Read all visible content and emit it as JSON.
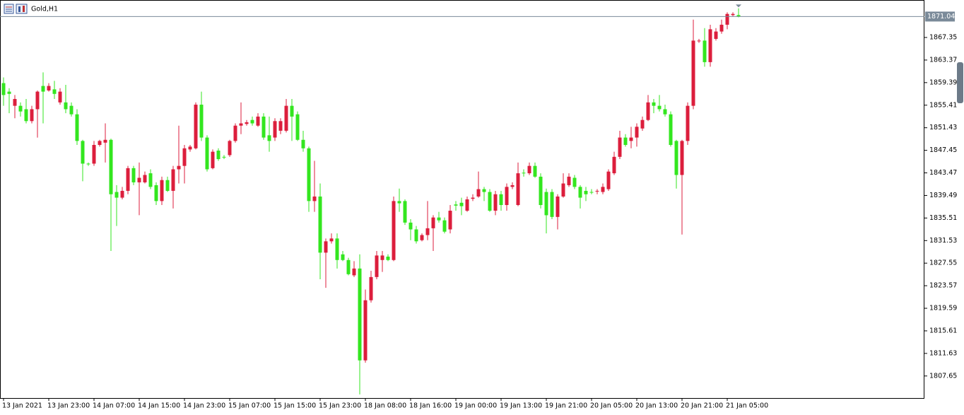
{
  "chart_data": {
    "type": "candlestick",
    "title": "Gold,H1",
    "up_color": "#dc1e3c",
    "down_color": "#33e61f",
    "current_price": 1871.04,
    "ylim": [
      1803.76,
      1873.96
    ],
    "yticks": [
      1807.65,
      1811.63,
      1815.61,
      1819.59,
      1823.57,
      1827.55,
      1831.53,
      1835.51,
      1839.49,
      1843.47,
      1847.45,
      1851.43,
      1855.41,
      1859.39,
      1863.37,
      1867.35
    ],
    "categories": [
      "13 Jan 2021",
      null,
      null,
      null,
      null,
      null,
      null,
      null,
      "13 Jan 23:00",
      null,
      null,
      null,
      null,
      null,
      null,
      null,
      "14 Jan 07:00",
      null,
      null,
      null,
      null,
      null,
      null,
      null,
      "14 Jan 15:00",
      null,
      null,
      null,
      null,
      null,
      null,
      null,
      "14 Jan 23:00",
      null,
      null,
      null,
      null,
      null,
      null,
      null,
      "15 Jan 07:00",
      null,
      null,
      null,
      null,
      null,
      null,
      null,
      "15 Jan 15:00",
      null,
      null,
      null,
      null,
      null,
      null,
      null,
      "15 Jan 23:00",
      null,
      null,
      null,
      null,
      null,
      null,
      null,
      "18 Jan 08:00",
      null,
      null,
      null,
      null,
      null,
      null,
      null,
      "18 Jan 16:00",
      null,
      null,
      null,
      null,
      null,
      null,
      null,
      "19 Jan 00:00",
      null,
      null,
      null,
      null,
      null,
      null,
      null,
      "19 Jan 13:00",
      null,
      null,
      null,
      null,
      null,
      null,
      null,
      "19 Jan 21:00",
      null,
      null,
      null,
      null,
      null,
      null,
      null,
      "20 Jan 05:00",
      null,
      null,
      null,
      null,
      null,
      null,
      null,
      "20 Jan 13:00",
      null,
      null,
      null,
      null,
      null,
      null,
      null,
      "20 Jan 21:00",
      null,
      null,
      null,
      null,
      null,
      null,
      null,
      "21 Jan 05:00",
      null,
      null
    ],
    "open": [
      1859.3,
      1857.8,
      1855.3,
      1855.3,
      1854.7,
      1852.6,
      1854.7,
      1858.8,
      1858.0,
      1858.2,
      1855.9,
      1855.9,
      1855.3,
      1853.8,
      1849.1,
      1845.1,
      1845.1,
      1848.4,
      1848.8,
      1849.3,
      1840.1,
      1839.1,
      1840.3,
      1844.3,
      1841.8,
      1841.8,
      1843.4,
      1841.3,
      1838.5,
      1842.2,
      1840.3,
      1844.1,
      1844.7,
      1847.6,
      1847.8,
      1855.5,
      1849.7,
      1844.3,
      1847.4,
      1846.3,
      1846.6,
      1849.1,
      1851.8,
      1852.1,
      1852.8,
      1851.8,
      1853.4,
      1850.1,
      1849.7,
      1850.9,
      1850.9,
      1855.3,
      1853.8,
      1849.3,
      1847.8,
      1838.5,
      1839.3,
      1829.4,
      1831.4,
      1831.9,
      1829.1,
      1828.1,
      1825.4,
      1826.6,
      1810.4,
      1821.0,
      1825.1,
      1828.1,
      1828.7,
      1828.1,
      1838.5,
      1838.5,
      1834.7,
      1833.5,
      1831.6,
      1832.5,
      1833.7,
      1835.6,
      1835.1,
      1833.5,
      1837.9,
      1838.2,
      1836.8,
      1838.9,
      1839.3,
      1840.6,
      1840.1,
      1836.8,
      1839.7,
      1837.8,
      1841.0,
      1837.8,
      1843.5,
      1843.4,
      1844.7,
      1842.8,
      1840.1,
      1840.1,
      1835.7,
      1839.3,
      1841.3,
      1842.6,
      1841.0,
      1840.3,
      1840.1,
      1840.2,
      1840.1,
      1840.6,
      1843.4,
      1846.3,
      1849.7,
      1849.1,
      1849.7,
      1851.3,
      1852.8,
      1855.9,
      1855.3,
      1854.7,
      1853.8,
      1849.1,
      1843.1,
      1849.1,
      1855.3,
      1866.7,
      1866.8,
      1863.0,
      1867.1,
      1868.4,
      1869.6,
      1871.3,
      1871.3
    ],
    "high": [
      1860.3,
      1858.4,
      1857.2,
      1855.9,
      1856.5,
      1855.3,
      1858.0,
      1861.2,
      1859.3,
      1859.7,
      1858.4,
      1859.0,
      1855.9,
      1854.7,
      1849.3,
      1845.3,
      1849.1,
      1849.3,
      1852.2,
      1849.5,
      1841.3,
      1841.0,
      1844.7,
      1844.7,
      1845.3,
      1843.7,
      1844.1,
      1841.8,
      1842.8,
      1842.8,
      1844.7,
      1851.8,
      1848.4,
      1848.4,
      1855.9,
      1857.8,
      1850.1,
      1847.6,
      1847.8,
      1846.6,
      1849.3,
      1852.2,
      1855.9,
      1852.8,
      1853.4,
      1854.0,
      1854.0,
      1853.4,
      1853.1,
      1853.1,
      1856.5,
      1856.5,
      1854.3,
      1850.9,
      1848.1,
      1845.6,
      1841.6,
      1831.9,
      1832.8,
      1832.8,
      1829.7,
      1828.5,
      1827.9,
      1829.1,
      1822.9,
      1826.2,
      1829.7,
      1829.7,
      1829.1,
      1839.3,
      1840.7,
      1838.8,
      1835.3,
      1834.1,
      1832.8,
      1838.5,
      1836.0,
      1836.6,
      1835.6,
      1837.8,
      1838.5,
      1839.1,
      1839.3,
      1839.7,
      1843.7,
      1841.0,
      1840.6,
      1840.3,
      1840.3,
      1841.6,
      1841.8,
      1845.3,
      1844.1,
      1845.3,
      1845.3,
      1843.4,
      1840.7,
      1840.6,
      1839.7,
      1843.4,
      1843.4,
      1843.1,
      1841.3,
      1841.0,
      1840.6,
      1840.6,
      1841.6,
      1844.1,
      1847.2,
      1850.9,
      1850.3,
      1851.6,
      1852.2,
      1853.4,
      1857.2,
      1856.5,
      1857.2,
      1855.5,
      1854.3,
      1849.3,
      1849.3,
      1855.9,
      1870.5,
      1867.1,
      1869.0,
      1869.6,
      1869.0,
      1870.5,
      1871.8,
      1871.8,
      1872.5
    ],
    "low": [
      1855.3,
      1854.0,
      1853.1,
      1853.4,
      1852.2,
      1852.2,
      1849.7,
      1852.2,
      1857.8,
      1856.5,
      1855.5,
      1854.0,
      1853.4,
      1848.4,
      1842.0,
      1844.7,
      1844.7,
      1848.1,
      1845.3,
      1829.7,
      1834.1,
      1838.8,
      1839.7,
      1841.3,
      1836.0,
      1841.6,
      1840.6,
      1837.8,
      1837.8,
      1840.1,
      1837.2,
      1841.6,
      1841.6,
      1847.2,
      1847.6,
      1849.1,
      1843.7,
      1844.1,
      1845.6,
      1845.9,
      1846.3,
      1848.8,
      1850.3,
      1851.8,
      1851.8,
      1851.6,
      1849.3,
      1847.2,
      1849.1,
      1850.3,
      1850.6,
      1849.1,
      1849.1,
      1847.2,
      1836.6,
      1836.6,
      1824.7,
      1823.2,
      1831.0,
      1826.6,
      1827.9,
      1825.4,
      1825.1,
      1804.4,
      1810.0,
      1820.6,
      1824.7,
      1826.0,
      1827.9,
      1827.9,
      1836.6,
      1834.3,
      1831.6,
      1831.0,
      1831.4,
      1831.6,
      1829.7,
      1834.7,
      1832.8,
      1832.8,
      1836.8,
      1836.0,
      1836.6,
      1838.5,
      1839.1,
      1838.5,
      1836.6,
      1836.0,
      1836.8,
      1836.8,
      1840.6,
      1837.6,
      1842.8,
      1843.1,
      1842.6,
      1837.2,
      1832.8,
      1835.3,
      1833.5,
      1839.1,
      1841.0,
      1840.6,
      1837.2,
      1838.5,
      1839.7,
      1839.7,
      1839.7,
      1840.3,
      1843.1,
      1845.9,
      1848.1,
      1847.8,
      1848.1,
      1850.9,
      1852.6,
      1854.0,
      1854.3,
      1853.4,
      1848.1,
      1840.7,
      1832.6,
      1848.4,
      1854.7,
      1866.4,
      1862.2,
      1862.2,
      1866.8,
      1868.0,
      1868.8,
      1871.1,
      1870.9
    ],
    "close": [
      1857.2,
      1857.4,
      1856.5,
      1854.3,
      1852.6,
      1854.7,
      1857.8,
      1857.8,
      1858.8,
      1857.4,
      1857.8,
      1854.7,
      1853.8,
      1849.1,
      1845.1,
      1845.0,
      1848.4,
      1849.1,
      1849.3,
      1839.7,
      1839.1,
      1840.3,
      1844.3,
      1841.8,
      1842.6,
      1843.1,
      1841.0,
      1838.5,
      1842.2,
      1840.3,
      1844.1,
      1844.7,
      1847.8,
      1848.1,
      1855.5,
      1849.7,
      1844.1,
      1847.2,
      1845.9,
      1846.2,
      1849.1,
      1851.8,
      1852.2,
      1852.4,
      1852.2,
      1853.4,
      1849.7,
      1849.1,
      1852.6,
      1852.6,
      1855.3,
      1853.4,
      1849.3,
      1847.8,
      1838.5,
      1839.3,
      1829.4,
      1831.4,
      1831.9,
      1828.1,
      1828.1,
      1825.6,
      1826.6,
      1810.4,
      1821.0,
      1825.1,
      1828.9,
      1828.9,
      1828.1,
      1838.5,
      1838.1,
      1834.7,
      1833.5,
      1831.4,
      1832.5,
      1833.7,
      1835.6,
      1835.1,
      1833.1,
      1836.8,
      1837.7,
      1837.6,
      1838.8,
      1839.1,
      1840.6,
      1840.1,
      1836.8,
      1839.7,
      1837.8,
      1841.0,
      1841.3,
      1843.4,
      1843.4,
      1844.7,
      1842.8,
      1837.8,
      1836.0,
      1835.7,
      1839.3,
      1841.6,
      1842.8,
      1841.0,
      1839.1,
      1839.7,
      1840.0,
      1840.3,
      1841.0,
      1843.7,
      1846.3,
      1849.7,
      1848.4,
      1849.7,
      1851.6,
      1852.8,
      1855.9,
      1855.3,
      1854.7,
      1853.8,
      1848.4,
      1843.1,
      1849.1,
      1855.3,
      1866.8,
      1866.8,
      1863.0,
      1868.8,
      1868.4,
      1869.6,
      1871.5,
      1871.5,
      1871.04
    ]
  }
}
